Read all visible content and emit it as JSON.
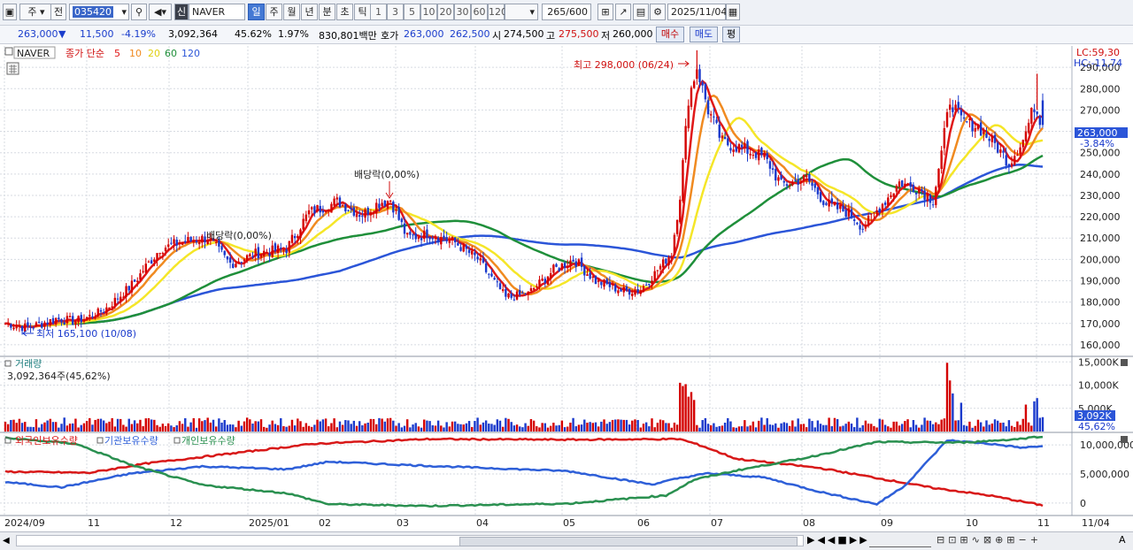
{
  "toolbar": {
    "market": "주",
    "prev": "전",
    "code": "035420",
    "badge": "신",
    "stock_name": "NAVER",
    "periods": [
      "일",
      "주",
      "월",
      "년",
      "분",
      "초",
      "틱"
    ],
    "active_period": "일",
    "intervals": [
      "1",
      "3",
      "5",
      "10",
      "20",
      "30",
      "60",
      "120"
    ],
    "count": "265",
    "count_total": "/600",
    "date": "2025/11/04"
  },
  "quote": {
    "price": "263,000",
    "change_arrow": "▼",
    "change": "11,500",
    "change_pct": "-4.19%",
    "volume": "3,092,364",
    "volume_ratio": "45.62%",
    "turnover_pct": "1.97%",
    "amount": "830,801백만",
    "hoga_label": "호가",
    "ask": "263,000",
    "bid": "262,500",
    "open_label": "시",
    "open": "274,500",
    "high_label": "고",
    "high": "275,500",
    "low_label": "저",
    "low": "260,000",
    "buy_button": "매수",
    "sell_button": "매도",
    "eval_button": "평"
  },
  "price_panel": {
    "name": "NAVER",
    "ma_prefix": "종가 단순",
    "ma_labels": [
      "5",
      "10",
      "20",
      "60",
      "120"
    ],
    "lc_label": "LC:59,30",
    "hc_label": "HC:-11,74",
    "current_tag": "263,000",
    "current_pct": "-3.84%",
    "high_annot": "최고 298,000 (06/24)",
    "low_annot": "최저 165,100 (10/08)",
    "dividend_annot_1": "배당락(0,00%)",
    "dividend_annot_2": "배당락(0,00%)"
  },
  "volume_panel": {
    "title": "거래량",
    "value_text": "3,092,364주(45,62%)",
    "tag": "3,092K",
    "tag_pct": "45,62%"
  },
  "holding_panel": {
    "legends": [
      "외국인보유수량",
      "기관보유수량",
      "개인보유수량"
    ]
  },
  "x_axis": {
    "labels": [
      "2024/09",
      "11",
      "12",
      "2025/01",
      "02",
      "03",
      "04",
      "05",
      "06",
      "07",
      "08",
      "09",
      "10",
      "11"
    ],
    "right_label": "11/04"
  },
  "colors": {
    "up": "#d40000",
    "down": "#1a3acc",
    "ma5": "#e01818",
    "ma10": "#f08a20",
    "ma20": "#f5e628",
    "ma60": "#1f8f3a",
    "ma120": "#2b55d8",
    "foreign": "#d81818",
    "institution": "#2e5fd8",
    "individual": "#2a9050"
  },
  "chart_data": {
    "type": "candlestick",
    "title": "NAVER",
    "price_axis": {
      "range": [
        155000,
        300000
      ],
      "ticks": [
        160000,
        170000,
        180000,
        190000,
        200000,
        210000,
        220000,
        230000,
        240000,
        250000,
        260000,
        270000,
        280000,
        290000
      ]
    },
    "volume_axis": {
      "range": [
        0,
        16000000
      ],
      "ticks": [
        5000000,
        10000000,
        15000000
      ],
      "tick_labels": [
        "5,000K",
        "10,000K",
        "15,000K"
      ]
    },
    "holding_axis": {
      "range": [
        -2000000,
        12000000
      ],
      "ticks": [
        0,
        5000000,
        10000000
      ],
      "tick_labels": [
        "0",
        "5,000,000",
        "10,000,000"
      ]
    },
    "close_anchors": [
      [
        0,
        170000
      ],
      [
        8,
        168000
      ],
      [
        18,
        172000
      ],
      [
        25,
        171000
      ],
      [
        35,
        176000
      ],
      [
        45,
        188000
      ],
      [
        55,
        205000
      ],
      [
        62,
        208000
      ],
      [
        72,
        210000
      ],
      [
        80,
        198000
      ],
      [
        90,
        203000
      ],
      [
        100,
        205000
      ],
      [
        108,
        222000
      ],
      [
        118,
        227000
      ],
      [
        127,
        221000
      ],
      [
        132,
        226000
      ],
      [
        137,
        228000
      ],
      [
        143,
        210000
      ],
      [
        150,
        212000
      ],
      [
        160,
        208000
      ],
      [
        168,
        200000
      ],
      [
        178,
        182000
      ],
      [
        186,
        184000
      ],
      [
        195,
        195000
      ],
      [
        202,
        200000
      ],
      [
        210,
        190000
      ],
      [
        220,
        185000
      ],
      [
        226,
        186000
      ],
      [
        232,
        195000
      ],
      [
        237,
        203000
      ],
      [
        240,
        230000
      ],
      [
        243,
        275000
      ],
      [
        246,
        290000
      ],
      [
        250,
        270000
      ],
      [
        255,
        255000
      ],
      [
        262,
        252000
      ],
      [
        270,
        248000
      ],
      [
        276,
        235000
      ],
      [
        285,
        238000
      ],
      [
        292,
        226000
      ],
      [
        300,
        222000
      ],
      [
        305,
        215000
      ],
      [
        312,
        226000
      ],
      [
        318,
        236000
      ],
      [
        325,
        233000
      ],
      [
        330,
        228000
      ],
      [
        333,
        250000
      ],
      [
        336,
        275000
      ],
      [
        340,
        265000
      ],
      [
        346,
        262000
      ],
      [
        352,
        254000
      ],
      [
        357,
        245000
      ],
      [
        362,
        256000
      ],
      [
        366,
        272000
      ],
      [
        369,
        263000
      ]
    ],
    "volume_spikes": [
      [
        240,
        10500000
      ],
      [
        241,
        9800000
      ],
      [
        242,
        10200000
      ],
      [
        243,
        7500000
      ],
      [
        244,
        8500000
      ],
      [
        245,
        6800000
      ],
      [
        335,
        14800000
      ],
      [
        336,
        11000000
      ],
      [
        337,
        8200000
      ],
      [
        340,
        6200000
      ],
      [
        363,
        5800000
      ],
      [
        366,
        6500000
      ],
      [
        367,
        7200000
      ],
      [
        369,
        3092364
      ]
    ],
    "holding_anchors": {
      "foreign": [
        [
          0,
          5400000
        ],
        [
          30,
          5200000
        ],
        [
          50,
          6800000
        ],
        [
          80,
          8500000
        ],
        [
          110,
          10200000
        ],
        [
          150,
          11000000
        ],
        [
          200,
          10900000
        ],
        [
          240,
          11000000
        ],
        [
          248,
          9800000
        ],
        [
          260,
          7600000
        ],
        [
          290,
          6000000
        ],
        [
          330,
          2600000
        ],
        [
          350,
          1300000
        ],
        [
          369,
          -400000
        ]
      ],
      "institution": [
        [
          0,
          3600000
        ],
        [
          20,
          2700000
        ],
        [
          45,
          5100000
        ],
        [
          70,
          6300000
        ],
        [
          100,
          5800000
        ],
        [
          115,
          7100000
        ],
        [
          150,
          6400000
        ],
        [
          200,
          5500000
        ],
        [
          230,
          3200000
        ],
        [
          240,
          4300000
        ],
        [
          250,
          5100000
        ],
        [
          270,
          4400000
        ],
        [
          290,
          1900000
        ],
        [
          310,
          -200000
        ],
        [
          320,
          3000000
        ],
        [
          335,
          10800000
        ],
        [
          350,
          10200000
        ],
        [
          362,
          9500000
        ],
        [
          369,
          9800000
        ]
      ],
      "individual": [
        [
          0,
          11200000
        ],
        [
          25,
          10200000
        ],
        [
          45,
          6500000
        ],
        [
          70,
          3100000
        ],
        [
          100,
          1700000
        ],
        [
          115,
          -200000
        ],
        [
          150,
          -500000
        ],
        [
          200,
          -100000
        ],
        [
          235,
          1300000
        ],
        [
          245,
          4000000
        ],
        [
          260,
          5600000
        ],
        [
          285,
          7800000
        ],
        [
          310,
          10500000
        ],
        [
          340,
          10400000
        ],
        [
          360,
          11000000
        ],
        [
          369,
          11500000
        ]
      ]
    }
  }
}
